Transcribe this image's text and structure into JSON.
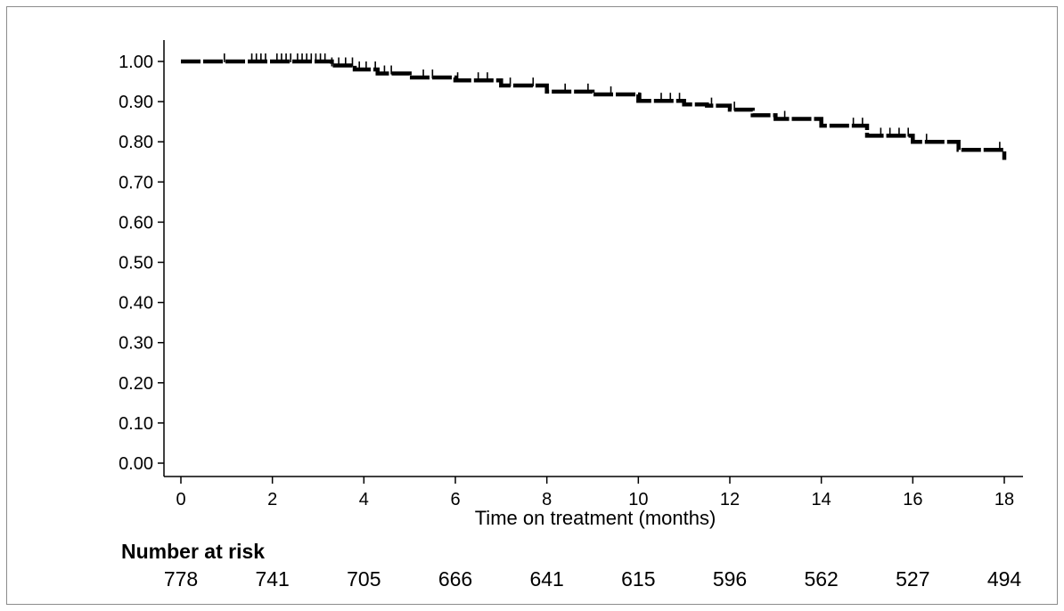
{
  "chart_data": {
    "type": "line",
    "title": "",
    "xlabel": "Time on treatment (months)",
    "ylabel": "",
    "xlim": [
      0,
      18
    ],
    "ylim": [
      0,
      1
    ],
    "x_ticks": [
      "0",
      "2",
      "4",
      "6",
      "8",
      "10",
      "12",
      "14",
      "16",
      "18"
    ],
    "y_ticks": [
      "0.00",
      "0.10",
      "0.20",
      "0.30",
      "0.40",
      "0.50",
      "0.60",
      "0.70",
      "0.80",
      "0.90",
      "1.00"
    ],
    "grid": false,
    "line_style": "dashed",
    "series": [
      {
        "x": [
          0,
          1,
          2,
          2.8,
          3.3,
          3.8,
          4.3,
          5,
          6,
          7,
          8,
          9,
          10,
          11,
          11.5,
          12,
          12.5,
          13,
          14,
          15,
          16,
          17,
          18
        ],
        "y": [
          1.0,
          1.0,
          1.0,
          1.0,
          0.99,
          0.98,
          0.97,
          0.96,
          0.953,
          0.94,
          0.925,
          0.918,
          0.902,
          0.893,
          0.89,
          0.88,
          0.866,
          0.857,
          0.84,
          0.815,
          0.8,
          0.78,
          0.755
        ]
      }
    ],
    "censor_marks_x": [
      0.95,
      1.55,
      1.65,
      1.75,
      1.85,
      2.1,
      2.2,
      2.3,
      2.4,
      2.55,
      2.65,
      2.75,
      2.85,
      2.95,
      3.05,
      3.15,
      3.3,
      3.45,
      3.6,
      3.75,
      3.9,
      4.05,
      4.25,
      4.45,
      4.6,
      5.3,
      5.5,
      6.05,
      6.5,
      6.7,
      7.2,
      7.7,
      8.4,
      8.9,
      9.4,
      10.05,
      10.5,
      10.7,
      10.9,
      11.6,
      12.1,
      13.2,
      14.7,
      14.9,
      15.3,
      15.5,
      15.7,
      15.9,
      16.3,
      17.9
    ]
  },
  "risk_table": {
    "title": "Number at risk",
    "values": [
      "778",
      "741",
      "705",
      "666",
      "641",
      "615",
      "596",
      "562",
      "527",
      "494"
    ]
  }
}
